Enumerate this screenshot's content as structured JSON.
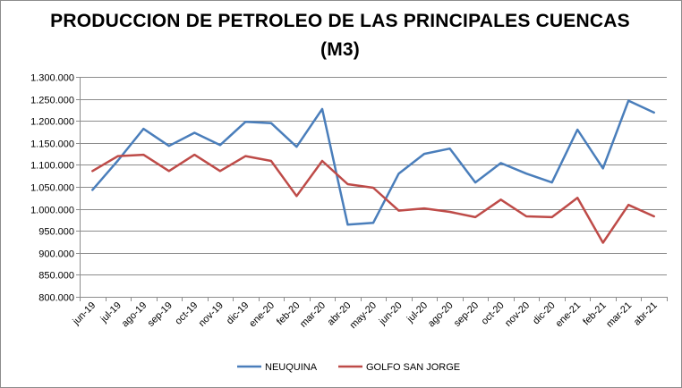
{
  "chart_data": {
    "type": "line",
    "title_line1": "PRODUCCION DE PETROLEO DE LAS PRINCIPALES CUENCAS",
    "title_line2": "(M3)",
    "categories": [
      "jun-19",
      "jul-19",
      "ago-19",
      "sep-19",
      "oct-19",
      "nov-19",
      "dic-19",
      "ene-20",
      "feb-20",
      "mar-20",
      "abr-20",
      "may-20",
      "jun-20",
      "jul-20",
      "ago-20",
      "sep-20",
      "oct-20",
      "nov-20",
      "dic-20",
      "ene-21",
      "feb-21",
      "mar-21",
      "abr-21"
    ],
    "ylim": [
      800000,
      1300000
    ],
    "yticks": [
      {
        "value": 800000,
        "label": "800.000"
      },
      {
        "value": 850000,
        "label": "850.000"
      },
      {
        "value": 900000,
        "label": "900.000"
      },
      {
        "value": 950000,
        "label": "950.000"
      },
      {
        "value": 1000000,
        "label": "1.000.000"
      },
      {
        "value": 1050000,
        "label": "1.050.000"
      },
      {
        "value": 1100000,
        "label": "1.100.000"
      },
      {
        "value": 1150000,
        "label": "1.150.000"
      },
      {
        "value": 1200000,
        "label": "1.200.000"
      },
      {
        "value": 1250000,
        "label": "1.250.000"
      },
      {
        "value": 1300000,
        "label": "1.300.000"
      }
    ],
    "grid": true,
    "legend_position": "bottom",
    "series": [
      {
        "name": "NEUQUINA",
        "color": "#4a7ebb",
        "values": [
          1043000,
          1110000,
          1182000,
          1143000,
          1173000,
          1145000,
          1198000,
          1195000,
          1141000,
          1227000,
          964000,
          968000,
          1080000,
          1125000,
          1137000,
          1060000,
          1104000,
          1080000,
          1060000,
          1180000,
          1092000,
          1246000,
          1219000
        ]
      },
      {
        "name": "GOLFO SAN JORGE",
        "color": "#be4b48",
        "values": [
          1086000,
          1120000,
          1123000,
          1086000,
          1123000,
          1086000,
          1120000,
          1109000,
          1029000,
          1109000,
          1056000,
          1048000,
          996000,
          1001000,
          993000,
          981000,
          1021000,
          983000,
          981000,
          1025000,
          923000,
          1009000,
          983000
        ]
      }
    ]
  }
}
